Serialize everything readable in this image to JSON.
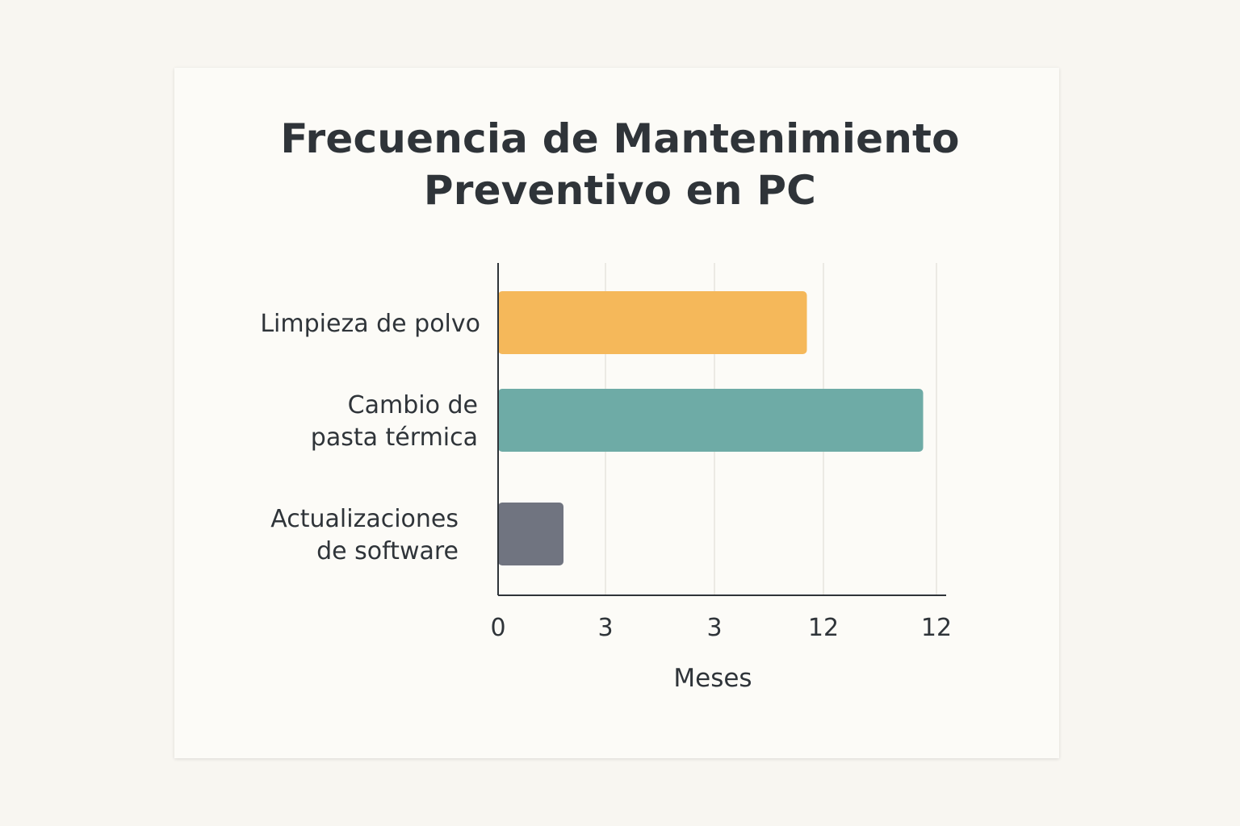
{
  "chart_data": {
    "type": "bar",
    "orientation": "horizontal",
    "title_lines": [
      "Frecuencia de Mantenimiento",
      "Preventivo en PC"
    ],
    "xlabel": "Meses",
    "ylabel": "",
    "categories": [
      [
        "Limpieza de polvo"
      ],
      [
        "Cambio de",
        "pasta térmica"
      ],
      [
        "Actualizaciones",
        "de software"
      ]
    ],
    "values": [
      8.5,
      11.7,
      1.8
    ],
    "colors": [
      "#f5b85a",
      "#6eaba6",
      "#707480"
    ],
    "x_ticks": [
      "0",
      "3",
      "3",
      "12",
      "12"
    ],
    "xlim": [
      0,
      12.4
    ],
    "grid": true,
    "legend": "none"
  }
}
